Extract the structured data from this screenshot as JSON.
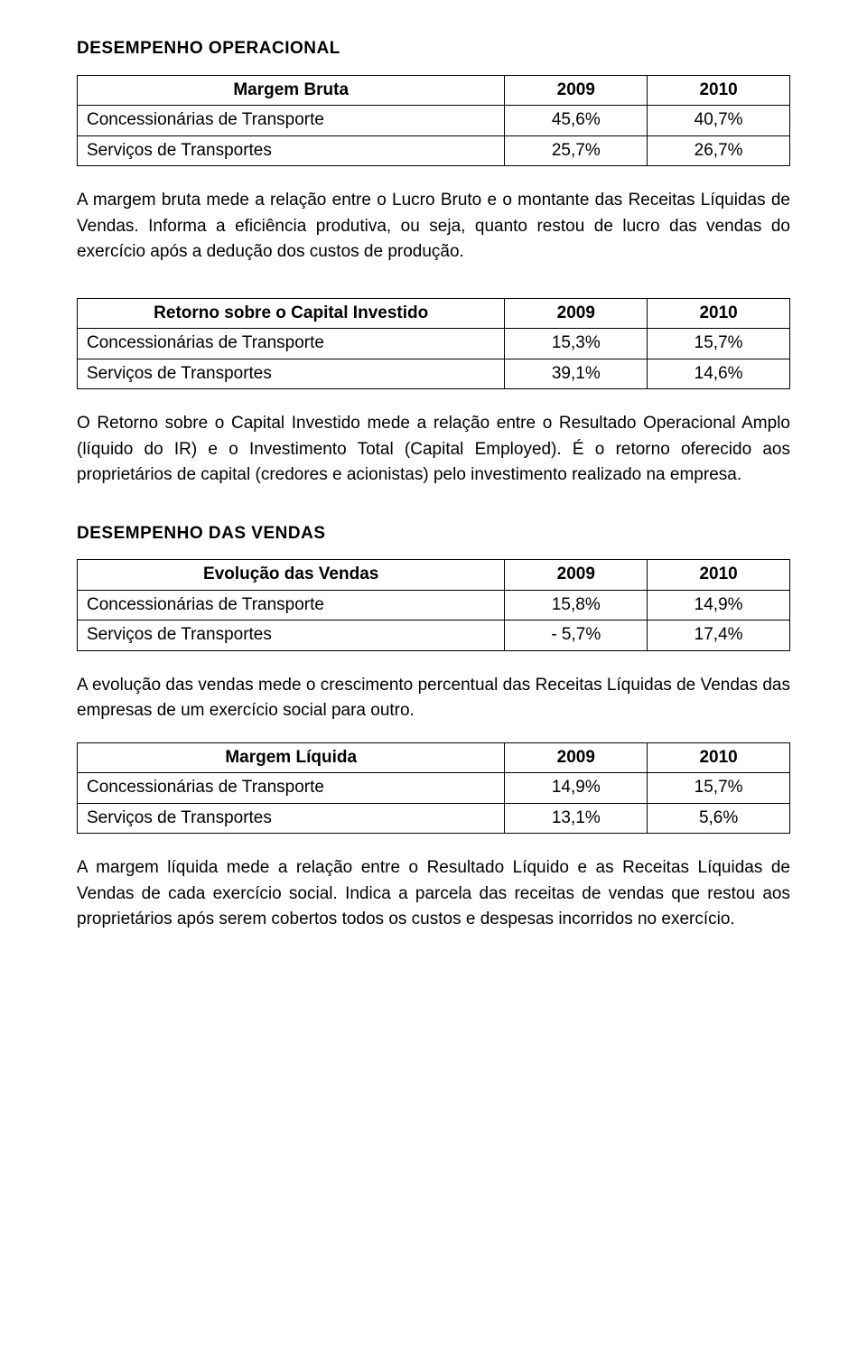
{
  "section1": {
    "heading": "DESEMPENHO OPERACIONAL",
    "table1": {
      "head_label": "Margem Bruta",
      "col1": "2009",
      "col2": "2010",
      "rows": [
        {
          "label": "Concessionárias de Transporte",
          "v1": "45,6%",
          "v2": "40,7%"
        },
        {
          "label": "Serviços de Transportes",
          "v1": "25,7%",
          "v2": "26,7%"
        }
      ]
    },
    "para1": "A margem bruta mede a relação entre o Lucro Bruto e o montante das Receitas Líquidas de Vendas. Informa a eficiência produtiva, ou seja, quanto restou de lucro das vendas do exercício após a dedução dos custos de produção.",
    "table2": {
      "head_label": "Retorno sobre o Capital Investido",
      "col1": "2009",
      "col2": "2010",
      "rows": [
        {
          "label": "Concessionárias de Transporte",
          "v1": "15,3%",
          "v2": "15,7%"
        },
        {
          "label": "Serviços de Transportes",
          "v1": "39,1%",
          "v2": "14,6%"
        }
      ]
    },
    "para2": "O Retorno sobre o Capital Investido mede a relação entre o Resultado Operacional Amplo (líquido do IR) e o Investimento Total (Capital Employed). É o retorno oferecido aos proprietários de capital (credores e acionistas) pelo investimento realizado na empresa."
  },
  "section2": {
    "heading": "DESEMPENHO DAS VENDAS",
    "table1": {
      "head_label": "Evolução das Vendas",
      "col1": "2009",
      "col2": "2010",
      "rows": [
        {
          "label": "Concessionárias de Transporte",
          "v1": "15,8%",
          "v2": "14,9%"
        },
        {
          "label": "Serviços de Transportes",
          "v1": "- 5,7%",
          "v2": "17,4%"
        }
      ]
    },
    "para1": "A evolução das vendas mede o crescimento percentual das Receitas Líquidas de Vendas das empresas de um exercício social para outro.",
    "table2": {
      "head_label": "Margem Líquida",
      "col1": "2009",
      "col2": "2010",
      "rows": [
        {
          "label": "Concessionárias de Transporte",
          "v1": "14,9%",
          "v2": "15,7%"
        },
        {
          "label": "Serviços de Transportes",
          "v1": "13,1%",
          "v2": "5,6%"
        }
      ]
    },
    "para2": "A margem líquida mede a relação entre o Resultado Líquido e as Receitas Líquidas de Vendas de cada exercício social. Indica a parcela das receitas de vendas que restou aos proprietários após serem cobertos todos os custos e despesas incorridos no exercício."
  },
  "layout": {
    "col_label_width": "60%",
    "col_val_width": "20%"
  }
}
